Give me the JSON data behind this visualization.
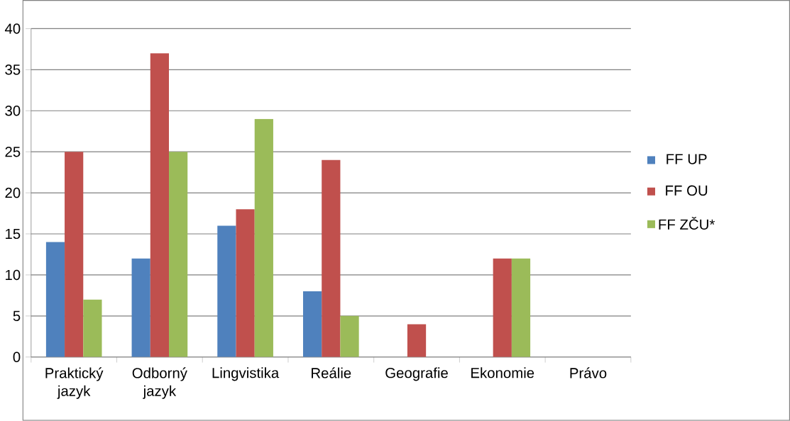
{
  "chart_data": {
    "type": "bar",
    "categories": [
      "Praktický jazyk",
      "Odborný jazyk",
      "Lingvistika",
      "Reálie",
      "Geografie",
      "Ekonomie",
      "Právo"
    ],
    "series": [
      {
        "name": "FF UP",
        "color": "#4f81bd",
        "values": [
          14,
          12,
          16,
          8,
          0,
          0,
          0
        ]
      },
      {
        "name": "FF OU",
        "color": "#c0504d",
        "values": [
          25,
          37,
          18,
          24,
          4,
          12,
          0
        ]
      },
      {
        "name": "FF ZČU*",
        "color": "#9bbb59",
        "values": [
          7,
          25,
          29,
          5,
          0,
          12,
          0
        ]
      }
    ],
    "ylim": [
      0,
      40
    ],
    "yticks": [
      0,
      5,
      10,
      15,
      20,
      25,
      30,
      35,
      40
    ],
    "grid": "y",
    "legend": "right"
  }
}
